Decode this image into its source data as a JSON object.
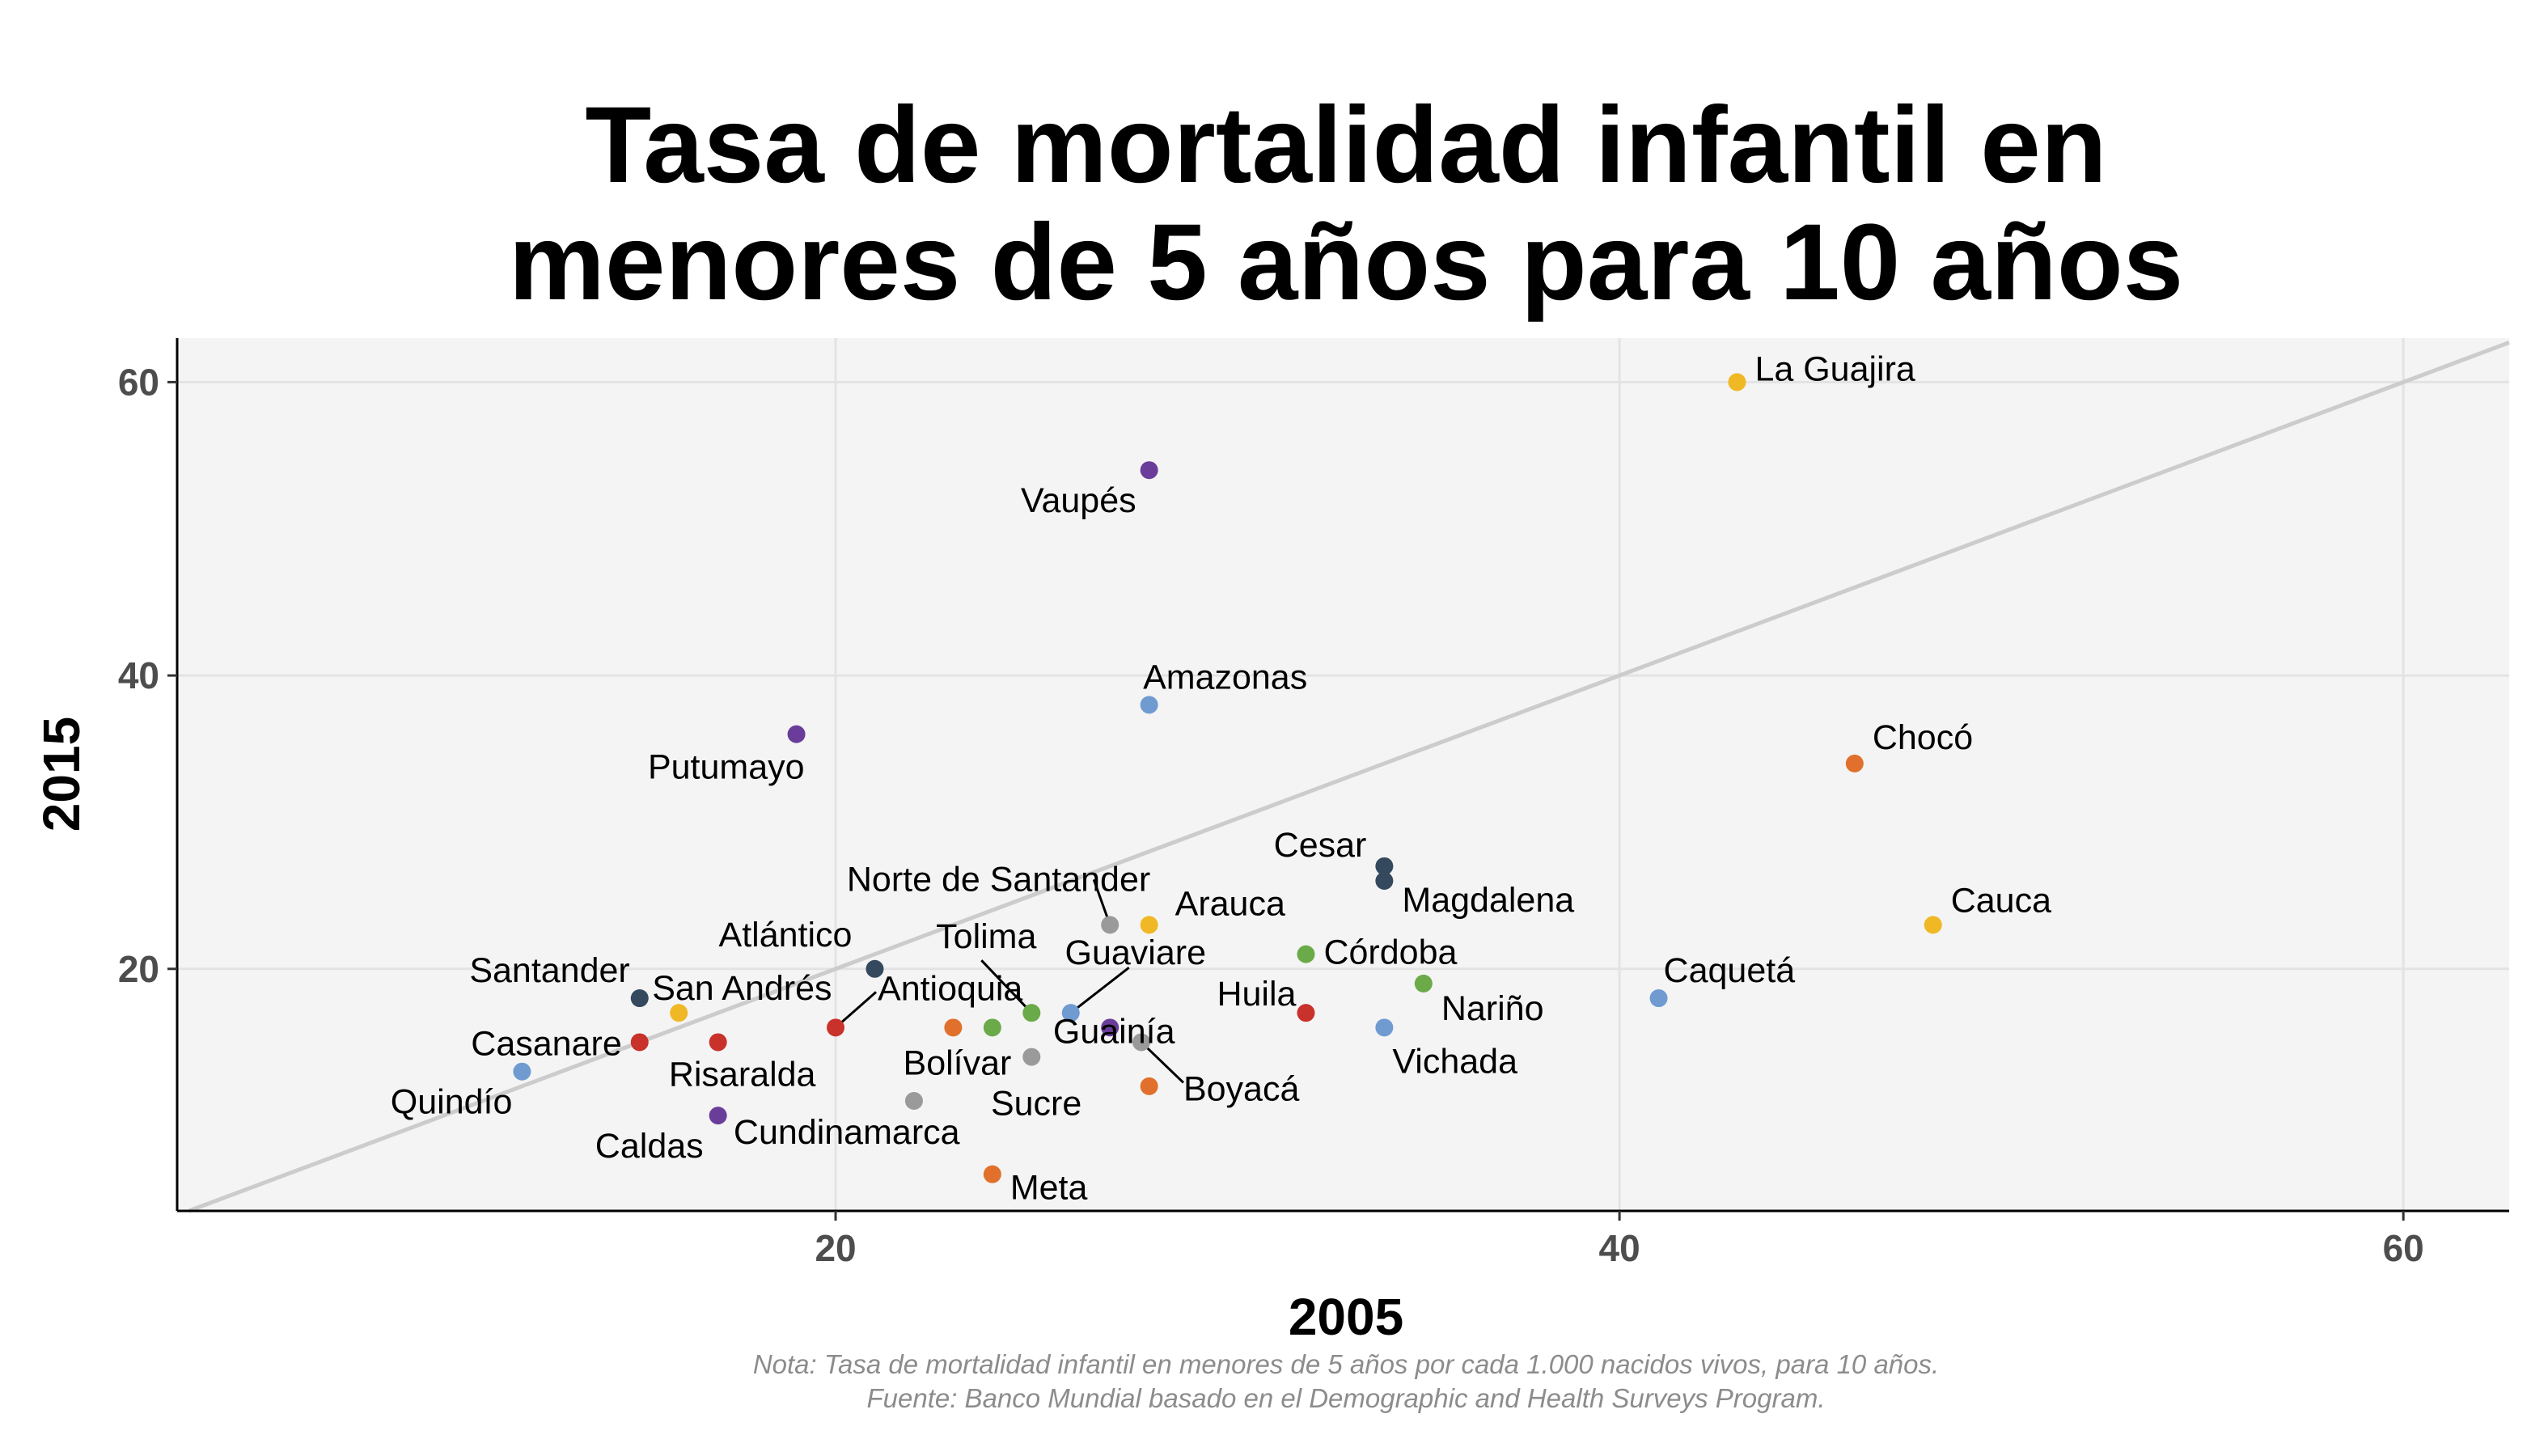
{
  "chart_data": {
    "type": "scatter",
    "title_lines": [
      "Tasa de mortalidad infantil en",
      "menores de 5 años para 10 años"
    ],
    "xlabel": "2005",
    "ylabel": "2015",
    "xlim": [
      3.2,
      62.7
    ],
    "ylim": [
      3.5,
      63
    ],
    "x_ticks": [
      20,
      40,
      60
    ],
    "y_ticks": [
      20,
      40,
      60
    ],
    "grid": true,
    "reference_line": "y = x",
    "caption_lines": [
      "Nota: Tasa de mortalidad infantil en menores de 5 años por cada 1.000 nacidos vivos, para 10 años.",
      "Fuente: Banco Mundial basado en el Demographic and Health Surveys Program."
    ],
    "points": [
      {
        "label": "La Guajira",
        "x": 43,
        "y": 60,
        "color": "#f0b824"
      },
      {
        "label": "Vaupés",
        "x": 28,
        "y": 54,
        "color": "#6a3d9a"
      },
      {
        "label": "Amazonas",
        "x": 28,
        "y": 38,
        "color": "#6f9bd1"
      },
      {
        "label": "Putumayo",
        "x": 19,
        "y": 36,
        "color": "#6a3d9a"
      },
      {
        "label": "Chocó",
        "x": 46,
        "y": 34,
        "color": "#e0702b"
      },
      {
        "label": "Cesar",
        "x": 34,
        "y": 27,
        "color": "#34495e"
      },
      {
        "label": "Magdalena",
        "x": 34,
        "y": 26,
        "color": "#34495e"
      },
      {
        "label": "Cauca",
        "x": 48,
        "y": 23,
        "color": "#f0b824"
      },
      {
        "label": "Norte de Santander",
        "x": 27,
        "y": 23,
        "color": "#9a9a9a"
      },
      {
        "label": "Arauca",
        "x": 28,
        "y": 23,
        "color": "#f0b824"
      },
      {
        "label": "Córdoba",
        "x": 32,
        "y": 21,
        "color": "#6aaa48"
      },
      {
        "label": "Atlántico",
        "x": 21,
        "y": 20,
        "color": "#34495e"
      },
      {
        "label": "Nariño",
        "x": 35,
        "y": 19,
        "color": "#6aaa48"
      },
      {
        "label": "Caquetá",
        "x": 41,
        "y": 18,
        "color": "#6f9bd1"
      },
      {
        "label": "Santander",
        "x": 15,
        "y": 18,
        "color": "#34495e"
      },
      {
        "label": "San Andrés",
        "x": 16,
        "y": 17,
        "color": "#f0b824"
      },
      {
        "label": "Huila",
        "x": 32,
        "y": 17,
        "color": "#c9312b"
      },
      {
        "label": "Tolima",
        "x": 25,
        "y": 17,
        "color": "#6aaa48"
      },
      {
        "label": "Guaviare",
        "x": 26,
        "y": 17,
        "color": "#6f9bd1"
      },
      {
        "label": "Antioquia",
        "x": 20,
        "y": 16,
        "color": "#c9312b"
      },
      {
        "label": "Bolívar",
        "x": 23,
        "y": 16,
        "color": "#e0702b"
      },
      {
        "label": "",
        "x": 24,
        "y": 16,
        "color": "#6aaa48"
      },
      {
        "label": "Guainía",
        "x": 27,
        "y": 16,
        "color": "#6a3d9a"
      },
      {
        "label": "Vichada",
        "x": 34,
        "y": 16,
        "color": "#6f9bd1"
      },
      {
        "label": "Casanare",
        "x": 15,
        "y": 15,
        "color": "#c9312b"
      },
      {
        "label": "Risaralda",
        "x": 17,
        "y": 15,
        "color": "#c9312b"
      },
      {
        "label": "Boyacá",
        "x": 27.8,
        "y": 15,
        "color": "#9a9a9a"
      },
      {
        "label": "Sucre",
        "x": 25,
        "y": 14,
        "color": "#9a9a9a"
      },
      {
        "label": "Quindío",
        "x": 12,
        "y": 13,
        "color": "#6f9bd1"
      },
      {
        "label": "",
        "x": 28,
        "y": 12,
        "color": "#e0702b"
      },
      {
        "label": "Cundinamarca",
        "x": 22,
        "y": 11,
        "color": "#9a9a9a"
      },
      {
        "label": "Caldas",
        "x": 17,
        "y": 10,
        "color": "#6a3d9a"
      },
      {
        "label": "Meta",
        "x": 24,
        "y": 6,
        "color": "#e0702b"
      }
    ]
  }
}
